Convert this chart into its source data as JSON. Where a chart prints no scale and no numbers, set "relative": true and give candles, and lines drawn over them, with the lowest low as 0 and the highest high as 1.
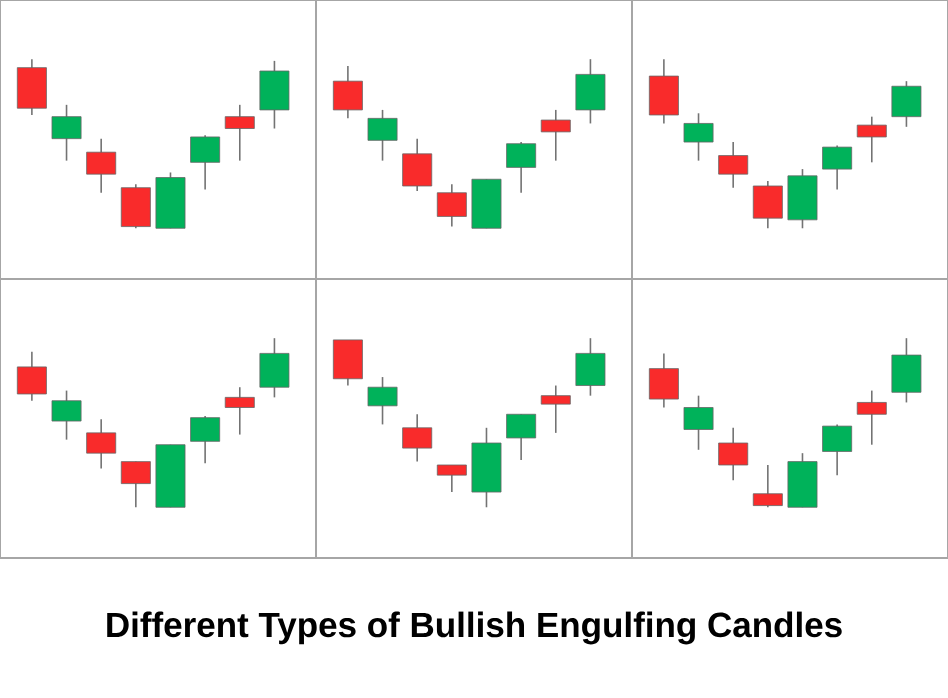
{
  "chart_data": [
    {
      "type": "candlestick",
      "title": "Different Types of Bullish Engulfing Candles",
      "relative": true,
      "categories": [
        null,
        null,
        null,
        null,
        null,
        null,
        null,
        null
      ],
      "colors": [
        "#f92b2b",
        "#00b25a",
        "#f92b2b",
        "#f92b2b",
        "#00b25a",
        "#00b25a",
        "#f92b2b",
        "#00b25a"
      ],
      "ohlc": [
        [
          0.95,
          1.0,
          0.67,
          0.71
        ],
        [
          0.53,
          0.73,
          0.4,
          0.66
        ],
        [
          0.45,
          0.53,
          0.21,
          0.32
        ],
        [
          0.24,
          0.26,
          0,
          0.01
        ],
        [
          0,
          0.33,
          0,
          0.3
        ],
        [
          0.39,
          0.55,
          0.23,
          0.54
        ],
        [
          0.66,
          0.73,
          0.4,
          0.59
        ],
        [
          0.7,
          0.99,
          0.59,
          0.93
        ]
      ]
    },
    {
      "type": "candlestick",
      "relative": true,
      "categories": [
        null,
        null,
        null,
        null,
        null,
        null,
        null,
        null
      ],
      "colors": [
        "#f92b2b",
        "#00b25a",
        "#f92b2b",
        "#f92b2b",
        "#00b25a",
        "#00b25a",
        "#f92b2b",
        "#00b25a"
      ],
      "ohlc": [
        [
          0.87,
          0.96,
          0.65,
          0.7
        ],
        [
          0.52,
          0.7,
          0.4,
          0.65
        ],
        [
          0.44,
          0.53,
          0.22,
          0.25
        ],
        [
          0.21,
          0.26,
          0.01,
          0.07
        ],
        [
          0,
          0.29,
          0,
          0.29
        ],
        [
          0.36,
          0.51,
          0.21,
          0.5
        ],
        [
          0.64,
          0.7,
          0.4,
          0.57
        ],
        [
          0.7,
          1.0,
          0.62,
          0.91
        ]
      ]
    },
    {
      "type": "candlestick",
      "relative": true,
      "categories": [
        null,
        null,
        null,
        null,
        null,
        null,
        null,
        null
      ],
      "colors": [
        "#f92b2b",
        "#00b25a",
        "#f92b2b",
        "#f92b2b",
        "#00b25a",
        "#00b25a",
        "#f92b2b",
        "#00b25a"
      ],
      "ohlc": [
        [
          0.9,
          1.0,
          0.62,
          0.67
        ],
        [
          0.51,
          0.68,
          0.4,
          0.62
        ],
        [
          0.43,
          0.51,
          0.24,
          0.32
        ],
        [
          0.25,
          0.28,
          0,
          0.06
        ],
        [
          0.05,
          0.35,
          0,
          0.31
        ],
        [
          0.35,
          0.49,
          0.23,
          0.48
        ],
        [
          0.61,
          0.66,
          0.39,
          0.54
        ],
        [
          0.66,
          0.87,
          0.6,
          0.84
        ]
      ]
    },
    {
      "type": "candlestick",
      "relative": true,
      "categories": [
        null,
        null,
        null,
        null,
        null,
        null,
        null,
        null
      ],
      "colors": [
        "#f92b2b",
        "#00b25a",
        "#f92b2b",
        "#f92b2b",
        "#00b25a",
        "#00b25a",
        "#f92b2b",
        "#00b25a"
      ],
      "ohlc": [
        [
          0.83,
          0.92,
          0.63,
          0.67
        ],
        [
          0.51,
          0.69,
          0.4,
          0.63
        ],
        [
          0.44,
          0.52,
          0.23,
          0.32
        ],
        [
          0.27,
          0.27,
          0,
          0.14
        ],
        [
          0,
          0.37,
          0,
          0.37
        ],
        [
          0.39,
          0.54,
          0.26,
          0.53
        ],
        [
          0.65,
          0.71,
          0.43,
          0.59
        ],
        [
          0.71,
          1.0,
          0.65,
          0.91
        ]
      ]
    },
    {
      "type": "candlestick",
      "relative": true,
      "categories": [
        null,
        null,
        null,
        null,
        null,
        null,
        null,
        null
      ],
      "colors": [
        "#f92b2b",
        "#00b25a",
        "#f92b2b",
        "#f92b2b",
        "#00b25a",
        "#00b25a",
        "#f92b2b",
        "#00b25a"
      ],
      "ohlc": [
        [
          0.99,
          0.99,
          0.72,
          0.76
        ],
        [
          0.6,
          0.77,
          0.49,
          0.71
        ],
        [
          0.47,
          0.55,
          0.27,
          0.35
        ],
        [
          0.25,
          0.25,
          0.09,
          0.19
        ],
        [
          0.09,
          0.47,
          0,
          0.38
        ],
        [
          0.41,
          0.55,
          0.28,
          0.55
        ],
        [
          0.66,
          0.72,
          0.44,
          0.61
        ],
        [
          0.72,
          1.0,
          0.66,
          0.91
        ]
      ]
    },
    {
      "type": "candlestick",
      "relative": true,
      "categories": [
        null,
        null,
        null,
        null,
        null,
        null,
        null,
        null
      ],
      "colors": [
        "#f92b2b",
        "#00b25a",
        "#f92b2b",
        "#f92b2b",
        "#00b25a",
        "#00b25a",
        "#f92b2b",
        "#00b25a"
      ],
      "ohlc": [
        [
          0.82,
          0.91,
          0.59,
          0.64
        ],
        [
          0.46,
          0.66,
          0.34,
          0.59
        ],
        [
          0.38,
          0.47,
          0.16,
          0.25
        ],
        [
          0.08,
          0.25,
          0,
          0.01
        ],
        [
          0,
          0.32,
          0,
          0.27
        ],
        [
          0.33,
          0.49,
          0.19,
          0.48
        ],
        [
          0.62,
          0.69,
          0.37,
          0.55
        ],
        [
          0.68,
          1.0,
          0.62,
          0.9
        ]
      ]
    }
  ]
}
